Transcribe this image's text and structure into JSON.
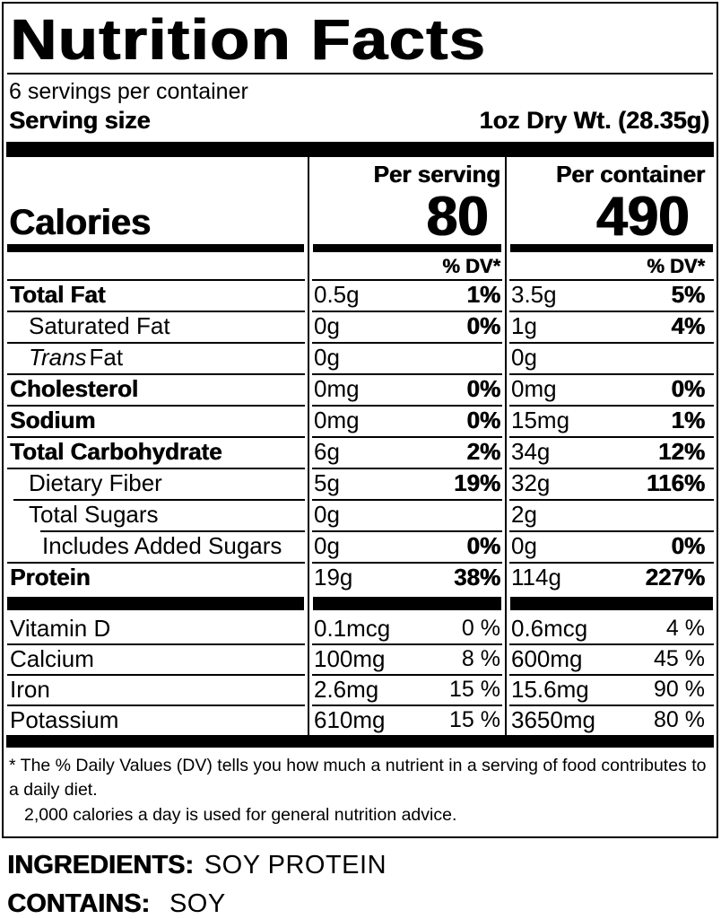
{
  "colors": {
    "ink": "#000000",
    "background": "#ffffff"
  },
  "header": {
    "title": "Nutrition Facts",
    "servings_per_container": "6 servings per container",
    "serving_size_label": "Serving size",
    "serving_size_value": "1oz Dry Wt. (28.35g)"
  },
  "calories": {
    "label": "Calories",
    "per_serving_header": "Per serving",
    "per_container_header": "Per container",
    "per_serving_value": "80",
    "per_container_value": "490",
    "dv_header": "% DV*"
  },
  "rows": [
    {
      "label": "Total Fat",
      "ps": "0.5g",
      "ps_dv": "1%",
      "pc": "3.5g",
      "pc_dv": "5%"
    },
    {
      "label": "Saturated Fat",
      "ps": "0g",
      "ps_dv": "0%",
      "pc": "1g",
      "pc_dv": "4%"
    },
    {
      "label_italic": "Trans",
      "label": "Fat",
      "ps": "0g",
      "ps_dv": "",
      "pc": "0g",
      "pc_dv": ""
    },
    {
      "label": "Cholesterol",
      "ps": "0mg",
      "ps_dv": "0%",
      "pc": "0mg",
      "pc_dv": "0%"
    },
    {
      "label": "Sodium",
      "ps": "0mg",
      "ps_dv": "0%",
      "pc": "15mg",
      "pc_dv": "1%"
    },
    {
      "label": "Total Carbohydrate",
      "ps": "6g",
      "ps_dv": "2%",
      "pc": "34g",
      "pc_dv": "12%"
    },
    {
      "label": "Dietary Fiber",
      "ps": "5g",
      "ps_dv": "19%",
      "pc": "32g",
      "pc_dv": "116%"
    },
    {
      "label": "Total Sugars",
      "ps": "0g",
      "ps_dv": "",
      "pc": "2g",
      "pc_dv": ""
    },
    {
      "label": "Includes Added Sugars",
      "ps": "0g",
      "ps_dv": "0%",
      "pc": "0g",
      "pc_dv": "0%"
    },
    {
      "label": "Protein",
      "ps": "19g",
      "ps_dv": "38%",
      "pc": "114g",
      "pc_dv": "227%"
    },
    {
      "label": "Vitamin D",
      "ps": "0.1mcg",
      "ps_dv": "0 %",
      "pc": "0.6mcg",
      "pc_dv": "4 %"
    },
    {
      "label": "Calcium",
      "ps": "100mg",
      "ps_dv": "8 %",
      "pc": "600mg",
      "pc_dv": "45 %"
    },
    {
      "label": "Iron",
      "ps": "2.6mg",
      "ps_dv": "15 %",
      "pc": "15.6mg",
      "pc_dv": "90 %"
    },
    {
      "label": "Potassium",
      "ps": "610mg",
      "ps_dv": "15 %",
      "pc": "3650mg",
      "pc_dv": "80 %"
    }
  ],
  "footnote": {
    "line1": "* The % Daily Values (DV) tells you how much a nutrient in a serving of food contributes to a a daily diet.",
    "line1_fixed": "* The % Daily Values (DV) tells you how much a nutrient in a serving of food contributes to a daily diet.",
    "line2": "2,000 calories a day is used for general nutrition advice."
  },
  "footer": {
    "ingredients_label": "INGREDIENTS:",
    "ingredients_value": "SOY PROTEIN",
    "contains_label": "CONTAINS:",
    "contains_value": "SOY"
  }
}
